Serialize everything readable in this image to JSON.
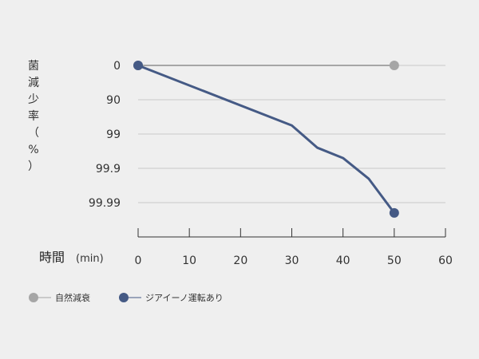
{
  "chart_data": {
    "type": "line",
    "ylabel_chars": [
      "菌",
      "減",
      "少",
      "率",
      "（",
      "%",
      "）"
    ],
    "xlabel": "時間",
    "xlabel_unit": "(min)",
    "x_ticks": [
      0,
      10,
      20,
      30,
      40,
      50,
      60
    ],
    "xlim": [
      0,
      60
    ],
    "y_scale": "log-reduction",
    "y_ticks": [
      {
        "label": "0",
        "level": 0
      },
      {
        "label": "90",
        "level": 1
      },
      {
        "label": "99",
        "level": 2
      },
      {
        "label": "99.9",
        "level": 3
      },
      {
        "label": "99.99",
        "level": 4
      }
    ],
    "grid": true,
    "series": [
      {
        "name": "自然減衰",
        "color": "#a6a6a6",
        "x": [
          0,
          50
        ],
        "y": [
          0,
          0
        ],
        "markers_at": [
          0,
          1
        ]
      },
      {
        "name": "ジアイーノ運転あり",
        "color": "#455a85",
        "x": [
          0,
          30,
          35,
          40,
          45,
          50
        ],
        "y": [
          0,
          1.75,
          2.4,
          2.7,
          3.3,
          4.3
        ],
        "markers_at": [
          0,
          5
        ]
      }
    ],
    "legend_position": "bottom-left"
  }
}
